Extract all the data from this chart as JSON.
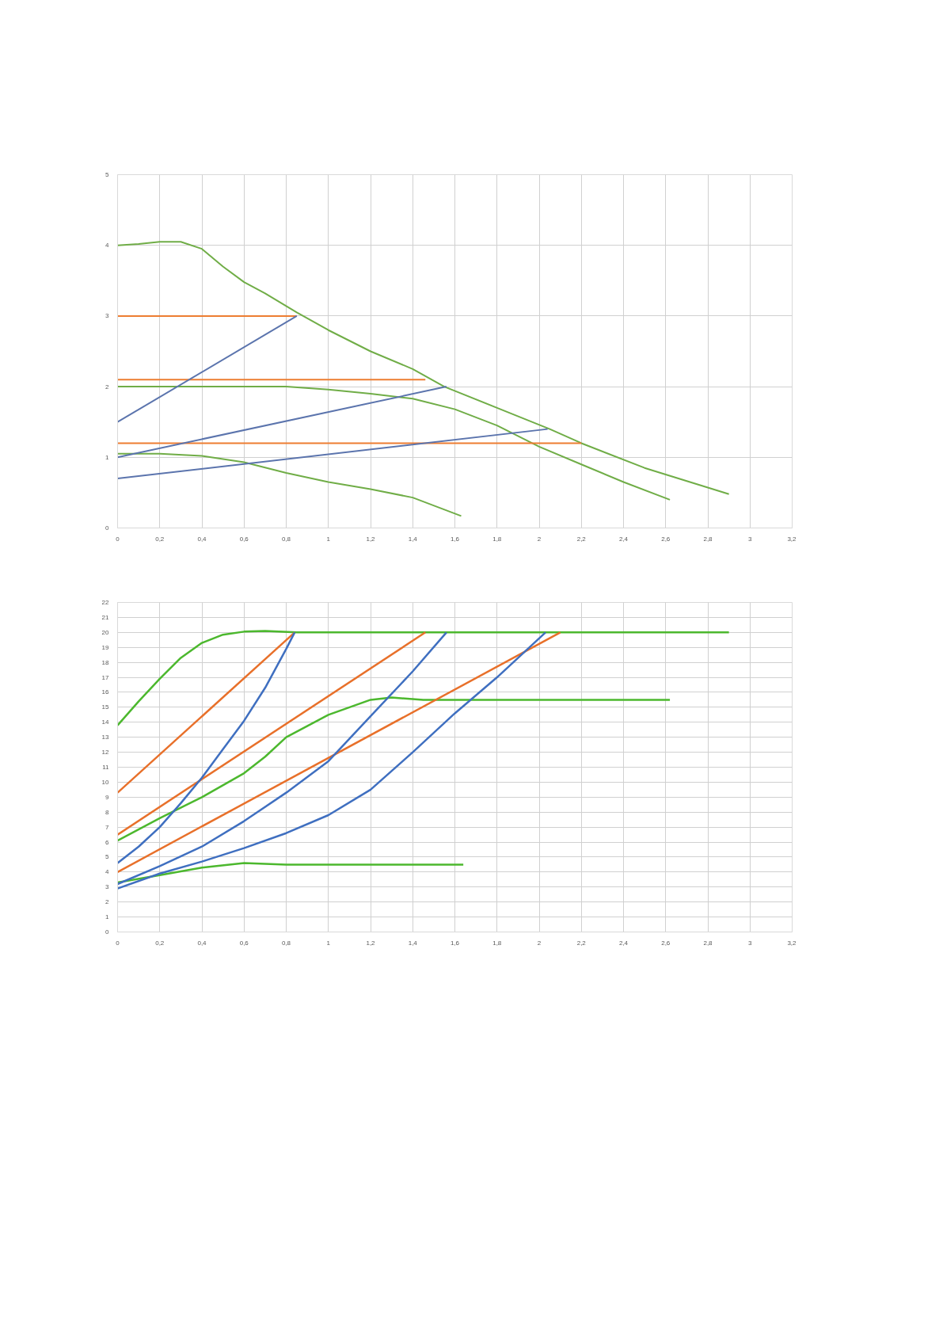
{
  "chart_data": [
    {
      "type": "line",
      "xlim": [
        0,
        3.2
      ],
      "ylim": [
        0,
        5
      ],
      "grid": true,
      "line_style": "solid",
      "xticks": [
        0,
        {
          "value": 0.2,
          "label": "0,2"
        },
        {
          "value": 0.4,
          "label": "0,4"
        },
        {
          "value": 0.6,
          "label": "0,6"
        },
        {
          "value": 0.8,
          "label": "0,8"
        },
        1,
        {
          "value": 1.2,
          "label": "1,2"
        },
        {
          "value": 1.4,
          "label": "1,4"
        },
        {
          "value": 1.6,
          "label": "1,6"
        },
        {
          "value": 1.8,
          "label": "1,8"
        },
        2,
        {
          "value": 2.2,
          "label": "2,2"
        },
        {
          "value": 2.4,
          "label": "2,4"
        },
        {
          "value": 2.6,
          "label": "2,6"
        },
        {
          "value": 2.8,
          "label": "2,8"
        },
        3,
        {
          "value": 3.2,
          "label": "3,2"
        }
      ],
      "yticks": [
        0,
        1,
        2,
        3,
        4,
        5
      ],
      "series": [
        {
          "color": "#70ad47",
          "x": [
            0,
            0.1,
            0.2,
            0.3,
            0.4,
            0.5,
            0.6,
            0.7,
            0.85,
            1.0,
            1.2,
            1.4,
            1.55,
            1.8,
            2.05,
            2.2,
            2.5,
            2.9
          ],
          "values": [
            4.0,
            4.02,
            4.05,
            4.05,
            3.95,
            3.7,
            3.48,
            3.32,
            3.05,
            2.8,
            2.5,
            2.25,
            2.0,
            1.7,
            1.4,
            1.2,
            0.85,
            0.48
          ]
        },
        {
          "color": "#70ad47",
          "x": [
            0,
            0.4,
            0.8,
            1.0,
            1.2,
            1.4,
            1.6,
            1.8,
            2.0,
            2.2,
            2.4,
            2.62
          ],
          "values": [
            2.0,
            2.0,
            2.0,
            1.96,
            1.9,
            1.83,
            1.68,
            1.45,
            1.15,
            0.9,
            0.65,
            0.4
          ]
        },
        {
          "color": "#70ad47",
          "x": [
            0,
            0.2,
            0.4,
            0.6,
            0.8,
            1.0,
            1.2,
            1.4,
            1.63
          ],
          "values": [
            1.05,
            1.05,
            1.02,
            0.93,
            0.78,
            0.65,
            0.55,
            0.43,
            0.17
          ]
        },
        {
          "color": "#ed7d31",
          "x": [
            0,
            0.85
          ],
          "values": [
            3.0,
            3.0
          ]
        },
        {
          "color": "#ed7d31",
          "x": [
            0,
            1.46
          ],
          "values": [
            2.1,
            2.1
          ]
        },
        {
          "color": "#ed7d31",
          "x": [
            0,
            2.2
          ],
          "values": [
            1.2,
            1.2
          ]
        },
        {
          "color": "#5b74ad",
          "x": [
            0,
            0.85
          ],
          "values": [
            1.5,
            3.0
          ]
        },
        {
          "color": "#5b74ad",
          "x": [
            0,
            1.56
          ],
          "values": [
            1.0,
            2.0
          ]
        },
        {
          "color": "#5b74ad",
          "x": [
            0,
            2.04
          ],
          "values": [
            0.7,
            1.4
          ]
        }
      ]
    },
    {
      "type": "line",
      "xlim": [
        0,
        3.2
      ],
      "ylim": [
        0,
        22
      ],
      "grid": true,
      "line_style": "solid",
      "xticks": [
        0,
        {
          "value": 0.2,
          "label": "0,2"
        },
        {
          "value": 0.4,
          "label": "0,4"
        },
        {
          "value": 0.6,
          "label": "0,6"
        },
        {
          "value": 0.8,
          "label": "0,8"
        },
        1,
        {
          "value": 1.2,
          "label": "1,2"
        },
        {
          "value": 1.4,
          "label": "1,4"
        },
        {
          "value": 1.6,
          "label": "1,6"
        },
        {
          "value": 1.8,
          "label": "1,8"
        },
        2,
        {
          "value": 2.2,
          "label": "2,2"
        },
        {
          "value": 2.4,
          "label": "2,4"
        },
        {
          "value": 2.6,
          "label": "2,6"
        },
        {
          "value": 2.8,
          "label": "2,8"
        },
        3,
        {
          "value": 3.2,
          "label": "3,2"
        }
      ],
      "yticks": [
        0,
        1,
        2,
        3,
        4,
        5,
        6,
        7,
        8,
        9,
        10,
        11,
        12,
        13,
        14,
        15,
        16,
        17,
        18,
        19,
        20,
        21,
        22
      ],
      "series": [
        {
          "color": "#4cb82e",
          "x": [
            0,
            0.1,
            0.2,
            0.3,
            0.4,
            0.5,
            0.6,
            0.7,
            0.85,
            1.5,
            2.9
          ],
          "values": [
            13.8,
            15.4,
            16.9,
            18.3,
            19.3,
            19.85,
            20.05,
            20.1,
            20.0,
            20.0,
            20.0
          ]
        },
        {
          "color": "#4cb82e",
          "x": [
            0,
            0.2,
            0.4,
            0.6,
            0.7,
            0.8,
            1.0,
            1.2,
            1.3,
            1.45,
            2.62
          ],
          "values": [
            6.1,
            7.6,
            9.0,
            10.6,
            11.7,
            13.0,
            14.5,
            15.5,
            15.65,
            15.5,
            15.5
          ]
        },
        {
          "color": "#4cb82e",
          "x": [
            0,
            0.2,
            0.4,
            0.6,
            0.8,
            1.64
          ],
          "values": [
            3.3,
            3.8,
            4.3,
            4.6,
            4.5,
            4.5
          ]
        },
        {
          "color": "#e8702a",
          "x": [
            0,
            0.84
          ],
          "values": [
            9.3,
            20.0
          ]
        },
        {
          "color": "#e8702a",
          "x": [
            0,
            1.46
          ],
          "values": [
            6.5,
            20.0
          ]
        },
        {
          "color": "#e8702a",
          "x": [
            0,
            2.1
          ],
          "values": [
            4.0,
            20.0
          ]
        },
        {
          "color": "#3f6fc0",
          "x": [
            0,
            0.1,
            0.2,
            0.3,
            0.4,
            0.5,
            0.6,
            0.7,
            0.8,
            0.84
          ],
          "values": [
            4.6,
            5.7,
            7.0,
            8.6,
            10.3,
            12.2,
            14.1,
            16.3,
            18.9,
            20.0
          ]
        },
        {
          "color": "#3f6fc0",
          "x": [
            0,
            0.2,
            0.4,
            0.6,
            0.8,
            1.0,
            1.2,
            1.4,
            1.56
          ],
          "values": [
            3.2,
            4.4,
            5.7,
            7.4,
            9.3,
            11.4,
            14.4,
            17.4,
            20.0
          ]
        },
        {
          "color": "#3f6fc0",
          "x": [
            0,
            0.2,
            0.4,
            0.6,
            0.8,
            1.0,
            1.2,
            1.4,
            1.6,
            1.8,
            2.03
          ],
          "values": [
            2.9,
            3.9,
            4.7,
            5.6,
            6.6,
            7.8,
            9.5,
            12.0,
            14.6,
            17.0,
            20.0
          ]
        }
      ]
    }
  ]
}
